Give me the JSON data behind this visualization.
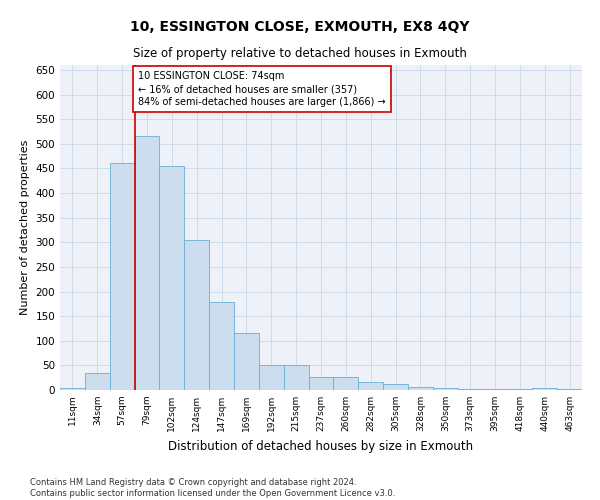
{
  "title": "10, ESSINGTON CLOSE, EXMOUTH, EX8 4QY",
  "subtitle": "Size of property relative to detached houses in Exmouth",
  "xlabel": "Distribution of detached houses by size in Exmouth",
  "ylabel": "Number of detached properties",
  "categories": [
    "11sqm",
    "34sqm",
    "57sqm",
    "79sqm",
    "102sqm",
    "124sqm",
    "147sqm",
    "169sqm",
    "192sqm",
    "215sqm",
    "237sqm",
    "260sqm",
    "282sqm",
    "305sqm",
    "328sqm",
    "350sqm",
    "373sqm",
    "395sqm",
    "418sqm",
    "440sqm",
    "463sqm"
  ],
  "values": [
    5,
    35,
    460,
    515,
    455,
    305,
    178,
    115,
    50,
    50,
    27,
    27,
    17,
    12,
    7,
    5,
    3,
    3,
    2,
    5,
    2
  ],
  "bar_color": "#ccdded",
  "bar_edge_color": "#6aaed6",
  "grid_color": "#c8d8e8",
  "vline_index": 2.5,
  "vline_color": "#cc0000",
  "annotation_text": "10 ESSINGTON CLOSE: 74sqm\n← 16% of detached houses are smaller (357)\n84% of semi-detached houses are larger (1,866) →",
  "annotation_box_color": "#cc0000",
  "ylim": [
    0,
    660
  ],
  "yticks": [
    0,
    50,
    100,
    150,
    200,
    250,
    300,
    350,
    400,
    450,
    500,
    550,
    600,
    650
  ],
  "footer1": "Contains HM Land Registry data © Crown copyright and database right 2024.",
  "footer2": "Contains public sector information licensed under the Open Government Licence v3.0.",
  "background_color": "#eef2f8",
  "fig_bg": "#ffffff"
}
